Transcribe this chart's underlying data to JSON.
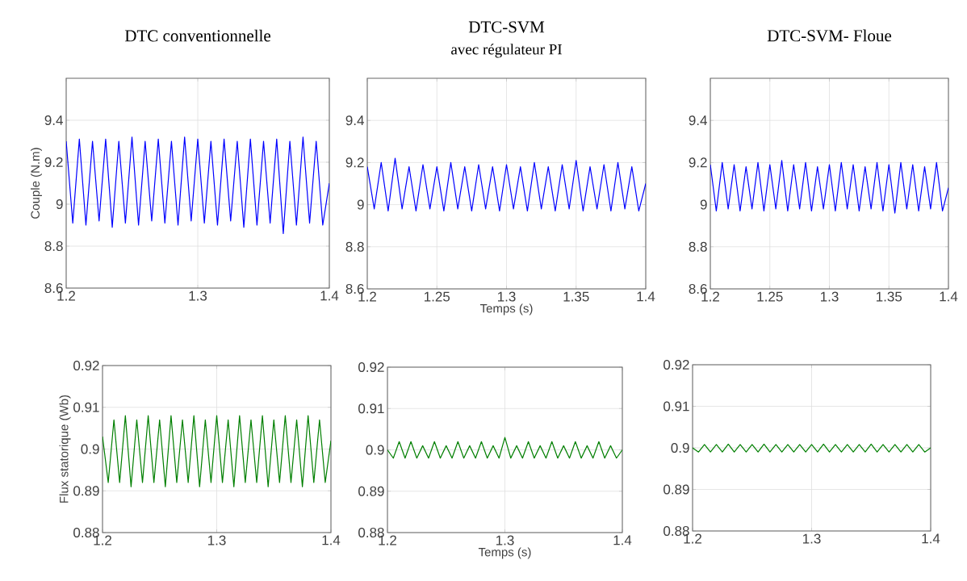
{
  "chart_data": [
    {
      "type": "line",
      "title": "DTC conventionnelle",
      "ylabel": "Couple (N.m)",
      "xlim": [
        1.2,
        1.4
      ],
      "ylim": [
        8.6,
        9.6
      ],
      "xticks": [
        1.2,
        1.3,
        1.4
      ],
      "yticks": [
        8.6,
        8.8,
        9,
        9.2,
        9.4
      ],
      "grid": true,
      "x": [
        1.2,
        1.205,
        1.21,
        1.215,
        1.22,
        1.225,
        1.23,
        1.235,
        1.24,
        1.245,
        1.25,
        1.255,
        1.26,
        1.265,
        1.27,
        1.275,
        1.28,
        1.285,
        1.29,
        1.295,
        1.3,
        1.305,
        1.31,
        1.315,
        1.32,
        1.325,
        1.33,
        1.335,
        1.34,
        1.345,
        1.35,
        1.355,
        1.36,
        1.365,
        1.37,
        1.375,
        1.38,
        1.385,
        1.39,
        1.395,
        1.4
      ],
      "series": [
        {
          "color": "#0000ff",
          "values": [
            9.3,
            8.91,
            9.31,
            8.9,
            9.3,
            8.92,
            9.31,
            8.89,
            9.3,
            8.91,
            9.32,
            8.9,
            9.3,
            8.92,
            9.31,
            8.91,
            9.3,
            8.9,
            9.32,
            8.92,
            9.31,
            8.91,
            9.3,
            8.9,
            9.31,
            8.92,
            9.3,
            8.89,
            9.31,
            8.9,
            9.3,
            8.91,
            9.31,
            8.86,
            9.3,
            8.9,
            9.32,
            8.91,
            9.3,
            8.9,
            9.1
          ]
        }
      ]
    },
    {
      "type": "line",
      "title": "DTC-SVM",
      "subtitle": "avec régulateur PI",
      "xlabel": "Temps (s)",
      "xlim": [
        1.2,
        1.4
      ],
      "ylim": [
        8.6,
        9.6
      ],
      "xticks": [
        1.2,
        1.25,
        1.3,
        1.35,
        1.4
      ],
      "yticks": [
        8.6,
        8.8,
        9,
        9.2,
        9.4
      ],
      "grid": true,
      "x": [
        1.2,
        1.205,
        1.21,
        1.215,
        1.22,
        1.225,
        1.23,
        1.235,
        1.24,
        1.245,
        1.25,
        1.255,
        1.26,
        1.265,
        1.27,
        1.275,
        1.28,
        1.285,
        1.29,
        1.295,
        1.3,
        1.305,
        1.31,
        1.315,
        1.32,
        1.325,
        1.33,
        1.335,
        1.34,
        1.345,
        1.35,
        1.355,
        1.36,
        1.365,
        1.37,
        1.375,
        1.38,
        1.385,
        1.39,
        1.395,
        1.4
      ],
      "series": [
        {
          "color": "#0000ff",
          "values": [
            9.18,
            8.98,
            9.2,
            8.97,
            9.22,
            8.98,
            9.18,
            8.97,
            9.19,
            8.98,
            9.18,
            8.97,
            9.2,
            8.98,
            9.18,
            8.97,
            9.19,
            8.98,
            9.18,
            8.97,
            9.19,
            8.98,
            9.18,
            8.97,
            9.2,
            8.98,
            9.18,
            8.97,
            9.19,
            8.98,
            9.21,
            8.97,
            9.18,
            8.98,
            9.19,
            8.97,
            9.2,
            8.98,
            9.18,
            8.97,
            9.1
          ]
        }
      ]
    },
    {
      "type": "line",
      "title": "DTC-SVM- Floue",
      "xlim": [
        1.2,
        1.4
      ],
      "ylim": [
        8.6,
        9.6
      ],
      "xticks": [
        1.2,
        1.25,
        1.3,
        1.35,
        1.4
      ],
      "yticks": [
        8.6,
        8.8,
        9,
        9.2,
        9.4
      ],
      "grid": true,
      "x": [
        1.2,
        1.205,
        1.21,
        1.215,
        1.22,
        1.225,
        1.23,
        1.235,
        1.24,
        1.245,
        1.25,
        1.255,
        1.26,
        1.265,
        1.27,
        1.275,
        1.28,
        1.285,
        1.29,
        1.295,
        1.3,
        1.305,
        1.31,
        1.315,
        1.32,
        1.325,
        1.33,
        1.335,
        1.34,
        1.345,
        1.35,
        1.355,
        1.36,
        1.365,
        1.37,
        1.375,
        1.38,
        1.385,
        1.39,
        1.395,
        1.4
      ],
      "series": [
        {
          "color": "#0000ff",
          "values": [
            9.19,
            8.97,
            9.2,
            8.98,
            9.19,
            8.97,
            9.18,
            8.98,
            9.2,
            8.97,
            9.19,
            8.98,
            9.21,
            8.97,
            9.19,
            8.98,
            9.2,
            8.97,
            9.18,
            8.98,
            9.19,
            8.97,
            9.2,
            8.98,
            9.19,
            8.97,
            9.18,
            8.98,
            9.2,
            8.97,
            9.19,
            8.96,
            9.2,
            8.98,
            9.19,
            8.97,
            9.18,
            8.98,
            9.2,
            8.97,
            9.08
          ]
        }
      ]
    },
    {
      "type": "line",
      "ylabel": "Flux statorique (Wb)",
      "xlim": [
        1.2,
        1.4
      ],
      "ylim": [
        0.88,
        0.92
      ],
      "xticks": [
        1.2,
        1.3,
        1.4
      ],
      "yticks": [
        0.88,
        0.89,
        0.9,
        0.91,
        0.92
      ],
      "grid": true,
      "x": [
        1.2,
        1.205,
        1.21,
        1.215,
        1.22,
        1.225,
        1.23,
        1.235,
        1.24,
        1.245,
        1.25,
        1.255,
        1.26,
        1.265,
        1.27,
        1.275,
        1.28,
        1.285,
        1.29,
        1.295,
        1.3,
        1.305,
        1.31,
        1.315,
        1.32,
        1.325,
        1.33,
        1.335,
        1.34,
        1.345,
        1.35,
        1.355,
        1.36,
        1.365,
        1.37,
        1.375,
        1.38,
        1.385,
        1.39,
        1.395,
        1.4
      ],
      "series": [
        {
          "color": "#007f00",
          "values": [
            0.903,
            0.892,
            0.907,
            0.892,
            0.908,
            0.891,
            0.907,
            0.892,
            0.908,
            0.892,
            0.907,
            0.891,
            0.908,
            0.892,
            0.907,
            0.892,
            0.908,
            0.891,
            0.907,
            0.892,
            0.908,
            0.892,
            0.907,
            0.891,
            0.908,
            0.892,
            0.907,
            0.892,
            0.908,
            0.891,
            0.907,
            0.892,
            0.908,
            0.892,
            0.907,
            0.891,
            0.908,
            0.892,
            0.907,
            0.892,
            0.902
          ]
        }
      ]
    },
    {
      "type": "line",
      "xlabel": "Temps (s)",
      "xlim": [
        1.2,
        1.4
      ],
      "ylim": [
        0.88,
        0.92
      ],
      "xticks": [
        1.2,
        1.3,
        1.4
      ],
      "yticks": [
        0.88,
        0.89,
        0.9,
        0.91,
        0.92
      ],
      "grid": true,
      "x": [
        1.2,
        1.205,
        1.21,
        1.215,
        1.22,
        1.225,
        1.23,
        1.235,
        1.24,
        1.245,
        1.25,
        1.255,
        1.26,
        1.265,
        1.27,
        1.275,
        1.28,
        1.285,
        1.29,
        1.295,
        1.3,
        1.305,
        1.31,
        1.315,
        1.32,
        1.325,
        1.33,
        1.335,
        1.34,
        1.345,
        1.35,
        1.355,
        1.36,
        1.365,
        1.37,
        1.375,
        1.38,
        1.385,
        1.39,
        1.395,
        1.4
      ],
      "series": [
        {
          "color": "#007f00",
          "values": [
            0.9,
            0.898,
            0.902,
            0.898,
            0.902,
            0.898,
            0.901,
            0.898,
            0.902,
            0.898,
            0.901,
            0.898,
            0.902,
            0.898,
            0.901,
            0.898,
            0.902,
            0.898,
            0.901,
            0.898,
            0.903,
            0.898,
            0.901,
            0.898,
            0.902,
            0.898,
            0.901,
            0.898,
            0.902,
            0.898,
            0.901,
            0.898,
            0.902,
            0.898,
            0.901,
            0.898,
            0.902,
            0.898,
            0.901,
            0.898,
            0.9
          ]
        }
      ]
    },
    {
      "type": "line",
      "xlim": [
        1.2,
        1.4
      ],
      "ylim": [
        0.88,
        0.92
      ],
      "xticks": [
        1.2,
        1.3,
        1.4
      ],
      "yticks": [
        0.88,
        0.89,
        0.9,
        0.91,
        0.92
      ],
      "grid": true,
      "x": [
        1.2,
        1.205,
        1.21,
        1.215,
        1.22,
        1.225,
        1.23,
        1.235,
        1.24,
        1.245,
        1.25,
        1.255,
        1.26,
        1.265,
        1.27,
        1.275,
        1.28,
        1.285,
        1.29,
        1.295,
        1.3,
        1.305,
        1.31,
        1.315,
        1.32,
        1.325,
        1.33,
        1.335,
        1.34,
        1.345,
        1.35,
        1.355,
        1.36,
        1.365,
        1.37,
        1.375,
        1.38,
        1.385,
        1.39,
        1.395,
        1.4
      ],
      "series": [
        {
          "color": "#007f00",
          "values": [
            0.9,
            0.899,
            0.9008,
            0.899,
            0.9008,
            0.899,
            0.9009,
            0.899,
            0.9008,
            0.899,
            0.9008,
            0.899,
            0.9009,
            0.899,
            0.9008,
            0.899,
            0.9008,
            0.899,
            0.9008,
            0.899,
            0.9008,
            0.899,
            0.9009,
            0.899,
            0.9008,
            0.899,
            0.9008,
            0.899,
            0.9008,
            0.899,
            0.9009,
            0.899,
            0.9008,
            0.899,
            0.9008,
            0.899,
            0.9008,
            0.899,
            0.9008,
            0.899,
            0.9
          ]
        }
      ]
    }
  ]
}
